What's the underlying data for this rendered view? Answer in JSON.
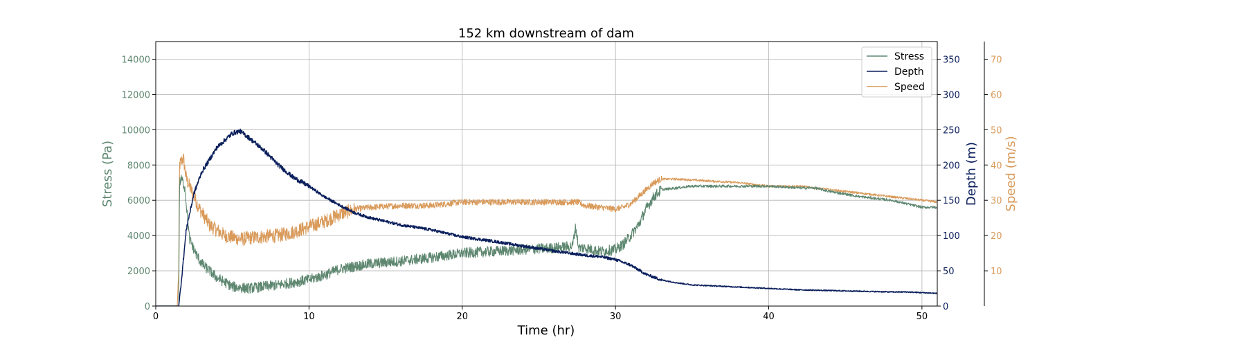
{
  "chart_data": {
    "type": "line",
    "title": "152 km downstream of dam",
    "xlabel": "Time (hr)",
    "xlim": [
      0,
      51
    ],
    "x_ticks": [
      0,
      10,
      20,
      30,
      40,
      50
    ],
    "grid": true,
    "legend_position": "top-right",
    "axes": {
      "left": {
        "label": "Stress (Pa)",
        "ylim": [
          0,
          15000
        ],
        "ticks": [
          0,
          2000,
          4000,
          6000,
          8000,
          10000,
          12000,
          14000
        ],
        "color": "#5e8770"
      },
      "right1": {
        "label": "Depth (m)",
        "ylim": [
          0,
          375
        ],
        "ticks": [
          0,
          50,
          100,
          150,
          200,
          250,
          300,
          350
        ],
        "color": "#0b1f5c"
      },
      "right2": {
        "label": "Speed (m/s)",
        "ylim": [
          0,
          75
        ],
        "ticks": [
          10,
          20,
          30,
          40,
          50,
          60,
          70
        ],
        "color": "#d99a5a"
      }
    },
    "series": [
      {
        "name": "Stress",
        "axis": "left",
        "color": "#5e8770",
        "noise": 600,
        "x": [
          0,
          1.5,
          1.55,
          1.7,
          1.9,
          2.2,
          2.6,
          3,
          4,
          5,
          6,
          7,
          8,
          9,
          10,
          11,
          12,
          14,
          16,
          18,
          20,
          22,
          24,
          26,
          27.2,
          27.4,
          27.6,
          28,
          29,
          30,
          30.5,
          31,
          31.5,
          32,
          32.5,
          33,
          34,
          35,
          36,
          38,
          40,
          42,
          43,
          44,
          46,
          48,
          49,
          50,
          51
        ],
        "y": [
          0,
          0,
          7000,
          7200,
          6700,
          3800,
          3000,
          2400,
          1600,
          1100,
          1000,
          1100,
          1200,
          1350,
          1500,
          1750,
          2100,
          2400,
          2550,
          2750,
          3000,
          3100,
          3200,
          3300,
          3400,
          4500,
          3300,
          3300,
          3100,
          3200,
          3500,
          4000,
          4600,
          5500,
          6200,
          6600,
          6700,
          6800,
          6800,
          6800,
          6800,
          6700,
          6700,
          6500,
          6200,
          6000,
          5800,
          5600,
          5600
        ]
      },
      {
        "name": "Depth",
        "axis": "right1",
        "color": "#0b1f5c",
        "noise": 5,
        "x": [
          0,
          1.5,
          1.6,
          2,
          2.5,
          3,
          4,
          5,
          5.5,
          6,
          7,
          8,
          9,
          10,
          11,
          12,
          13,
          14,
          16,
          18,
          20,
          22,
          24,
          26,
          28,
          29,
          30,
          31,
          32,
          33,
          34,
          35,
          36,
          38,
          40,
          42,
          44,
          46,
          48,
          49,
          50,
          51
        ],
        "y": [
          0,
          0,
          20,
          110,
          160,
          190,
          225,
          245,
          248,
          240,
          222,
          200,
          182,
          170,
          155,
          143,
          132,
          125,
          115,
          108,
          98,
          92,
          85,
          78,
          72,
          70,
          66,
          58,
          45,
          37,
          33,
          30,
          29,
          27,
          25,
          23,
          22,
          21,
          20,
          20,
          19,
          18
        ]
      },
      {
        "name": "Speed",
        "axis": "right2",
        "color": "#d99a5a",
        "noise": 2.5,
        "x": [
          0,
          1.4,
          1.5,
          1.55,
          1.8,
          2,
          2.3,
          2.8,
          3.5,
          4.5,
          5.5,
          6.5,
          8,
          9,
          10,
          11,
          12,
          13,
          14,
          16,
          18,
          20,
          22,
          24,
          26,
          27.5,
          28,
          29,
          30,
          30.5,
          31,
          31.5,
          32,
          32.5,
          33,
          34,
          36,
          38,
          40,
          42,
          44,
          46,
          48,
          50,
          51
        ],
        "y": [
          0,
          0,
          10,
          40,
          42,
          36,
          33,
          28,
          23,
          20,
          19,
          19.5,
          20,
          21,
          22.5,
          24,
          26,
          27.5,
          28,
          28.5,
          28.5,
          29.5,
          29.5,
          29.5,
          29.5,
          29.5,
          28.5,
          28,
          27.5,
          28,
          29,
          31,
          33,
          35,
          36,
          36,
          35.5,
          35,
          34,
          34,
          33,
          32,
          31,
          30,
          29.5
        ]
      }
    ]
  }
}
